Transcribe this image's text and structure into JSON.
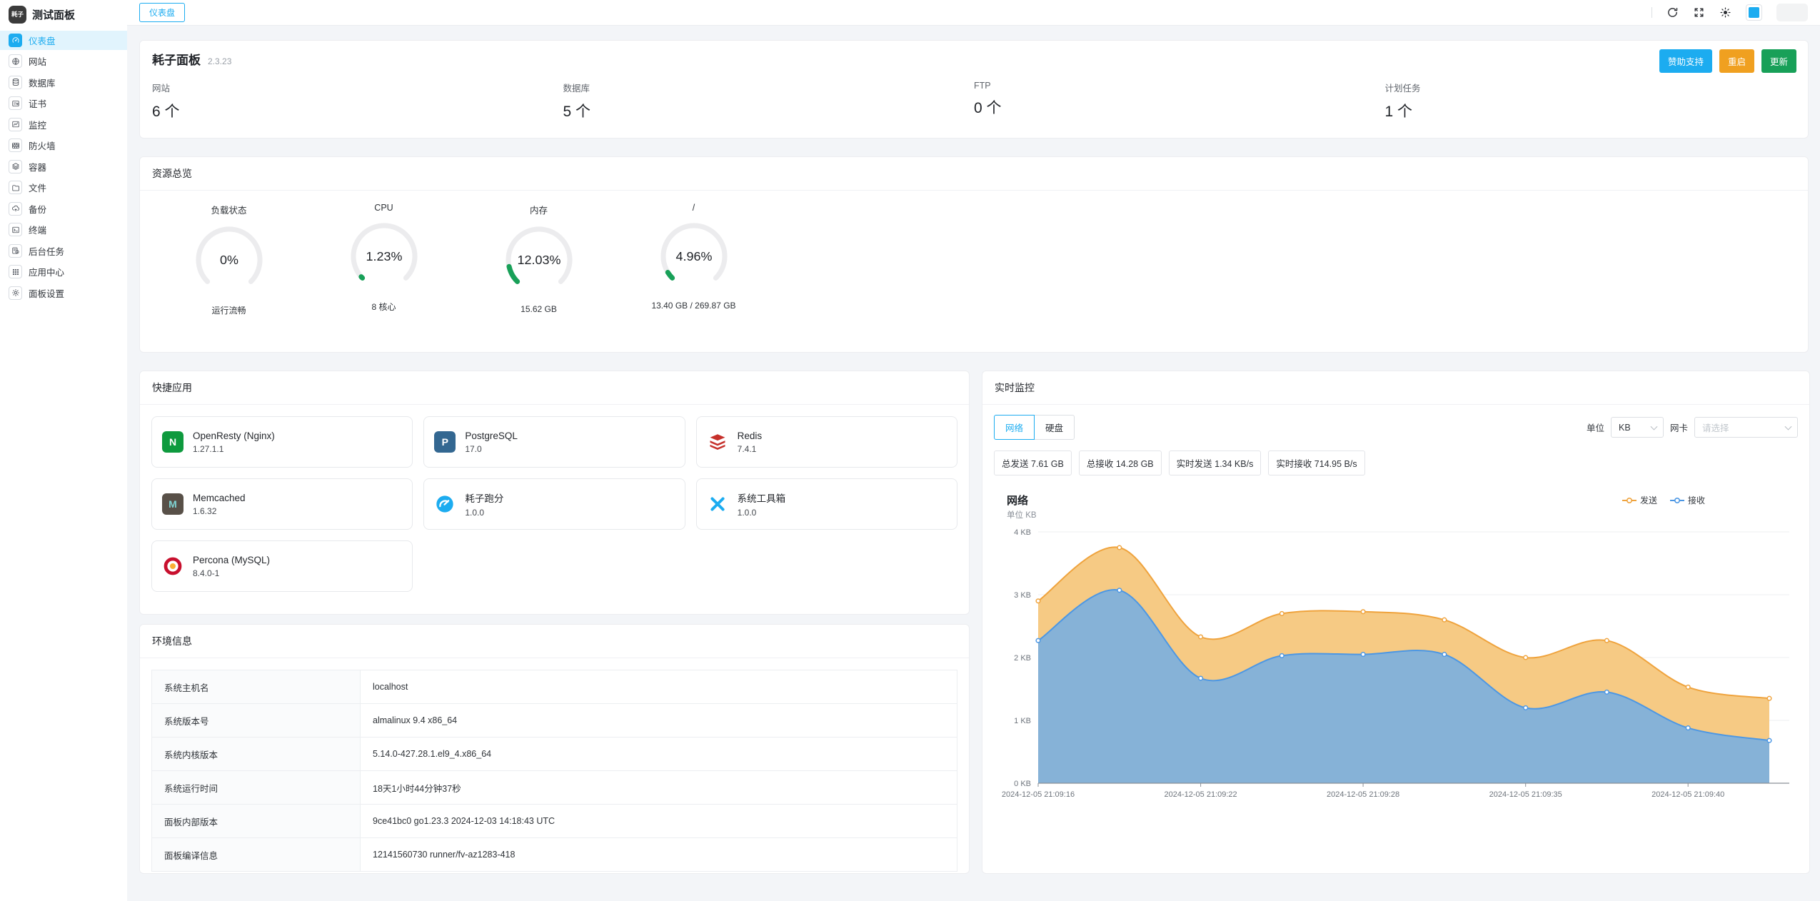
{
  "colors": {
    "accent": "#1cacf0",
    "success": "#18a058",
    "warning": "#f0a020",
    "gauge_green": "#18a058",
    "chart_send_line": "#efa33d",
    "chart_send_fill": "#f6c77d",
    "chart_recv_line": "#4c97e4",
    "chart_recv_fill": "#7fb0db"
  },
  "app": {
    "logo_text": "耗子",
    "title": "测试面板"
  },
  "topbar": {
    "tab": "仪表盘"
  },
  "sidebar": {
    "items": [
      {
        "label": "仪表盘",
        "icon": "dashboard",
        "active": true
      },
      {
        "label": "网站",
        "icon": "website",
        "active": false
      },
      {
        "label": "数据库",
        "icon": "database",
        "active": false
      },
      {
        "label": "证书",
        "icon": "certificate",
        "active": false
      },
      {
        "label": "监控",
        "icon": "monitor",
        "active": false
      },
      {
        "label": "防火墙",
        "icon": "firewall",
        "active": false
      },
      {
        "label": "容器",
        "icon": "container",
        "active": false
      },
      {
        "label": "文件",
        "icon": "files",
        "active": false
      },
      {
        "label": "备份",
        "icon": "backup",
        "active": false
      },
      {
        "label": "终端",
        "icon": "terminal",
        "active": false
      },
      {
        "label": "后台任务",
        "icon": "tasks",
        "active": false
      },
      {
        "label": "应用中心",
        "icon": "appcenter",
        "active": false
      },
      {
        "label": "面板设置",
        "icon": "settings",
        "active": false
      }
    ]
  },
  "panel": {
    "title": "耗子面板",
    "version": "2.3.23",
    "buttons": [
      {
        "label": "赞助支持",
        "type": "info"
      },
      {
        "label": "重启",
        "type": "warning"
      },
      {
        "label": "更新",
        "type": "success"
      }
    ],
    "stats": [
      {
        "label": "网站",
        "value": "6 个"
      },
      {
        "label": "数据库",
        "value": "5 个"
      },
      {
        "label": "FTP",
        "value": "0 个"
      },
      {
        "label": "计划任务",
        "value": "1 个"
      }
    ]
  },
  "resources": {
    "title": "资源总览",
    "gauges": [
      {
        "label": "负载状态",
        "percent": 0,
        "percent_text": "0%",
        "sub": "运行流畅"
      },
      {
        "label": "CPU",
        "percent": 1.23,
        "percent_text": "1.23%",
        "sub": "8 核心"
      },
      {
        "label": "内存",
        "percent": 12.03,
        "percent_text": "12.03%",
        "sub": "15.62 GB"
      },
      {
        "label": "/",
        "percent": 4.96,
        "percent_text": "4.96%",
        "sub": "13.40 GB / 269.87 GB"
      }
    ]
  },
  "apps": {
    "title": "快捷应用",
    "items": [
      {
        "name": "OpenResty (Nginx)",
        "version": "1.27.1.1",
        "icon": "openresty"
      },
      {
        "name": "PostgreSQL",
        "version": "17.0",
        "icon": "postgresql"
      },
      {
        "name": "Redis",
        "version": "7.4.1",
        "icon": "redis"
      },
      {
        "name": "Memcached",
        "version": "1.6.32",
        "icon": "memcached"
      },
      {
        "name": "耗子跑分",
        "version": "1.0.0",
        "icon": "haozi-bench"
      },
      {
        "name": "系统工具箱",
        "version": "1.0.0",
        "icon": "toolbox"
      },
      {
        "name": "Percona (MySQL)",
        "version": "8.4.0-1",
        "icon": "percona"
      }
    ]
  },
  "env": {
    "title": "环境信息",
    "rows": [
      {
        "label": "系统主机名",
        "value": "localhost"
      },
      {
        "label": "系统版本号",
        "value": "almalinux 9.4 x86_64"
      },
      {
        "label": "系统内核版本",
        "value": "5.14.0-427.28.1.el9_4.x86_64"
      },
      {
        "label": "系统运行时间",
        "value": "18天1小时44分钟37秒"
      },
      {
        "label": "面板内部版本",
        "value": "9ce41bc0 go1.23.3 2024-12-03 14:18:43 UTC"
      },
      {
        "label": "面板编译信息",
        "value": "12141560730 runner/fv-az1283-418"
      }
    ]
  },
  "monitor": {
    "title": "实时监控",
    "tabs": [
      {
        "label": "网络",
        "active": true
      },
      {
        "label": "硬盘",
        "active": false
      }
    ],
    "unit_label": "单位",
    "unit_value": "KB",
    "nic_label": "网卡",
    "nic_placeholder": "请选择",
    "badges": [
      "总发送 7.61 GB",
      "总接收 14.28 GB",
      "实时发送 1.34 KB/s",
      "实时接收 714.95 B/s"
    ]
  },
  "chart_data": {
    "type": "area",
    "title": "网络",
    "unit_label": "单位 KB",
    "ylim": [
      0,
      4
    ],
    "y_ticks": [
      "0 KB",
      "1 KB",
      "2 KB",
      "3 KB",
      "4 KB"
    ],
    "x_labels": [
      "2024-12-05 21:09:16",
      "2024-12-05 21:09:22",
      "2024-12-05 21:09:28",
      "2024-12-05 21:09:35",
      "2024-12-05 21:09:40"
    ],
    "x_label_indices": [
      0,
      2,
      4,
      6,
      8
    ],
    "n_points": 10,
    "grid": true,
    "legend_position": "top-right",
    "series": [
      {
        "name": "发送",
        "values": [
          2.9,
          3.75,
          2.33,
          2.7,
          2.73,
          2.6,
          2.0,
          2.27,
          1.53,
          1.35
        ]
      },
      {
        "name": "接收",
        "values": [
          2.27,
          3.07,
          1.67,
          2.03,
          2.05,
          2.05,
          1.2,
          1.45,
          0.88,
          0.68
        ]
      }
    ]
  }
}
